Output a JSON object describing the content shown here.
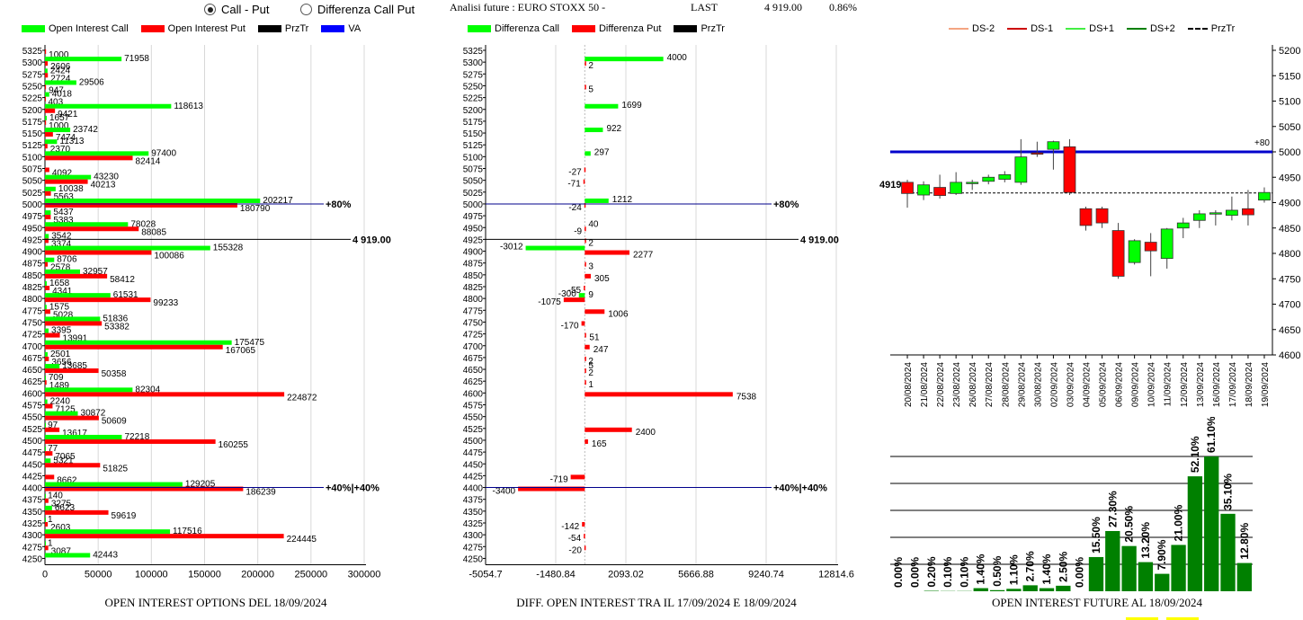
{
  "controls": {
    "radio_call_put": "Call - Put",
    "radio_diff": "Differenza Call Put",
    "selected": "call_put"
  },
  "header": {
    "analisi_label": "Analisi future : EURO STOXX 50 -",
    "last_label": "LAST",
    "last_value": "4 919.00",
    "change": "0.86%"
  },
  "colors": {
    "green": "#00ff00",
    "red": "#ff0000",
    "dark_green": "#008000",
    "blue": "#0000cc",
    "legend_orange": "#f4a582",
    "legend_darkred": "#cc0000"
  },
  "chart_data": [
    {
      "type": "bar",
      "orientation": "horizontal",
      "title": "OPEN INTEREST OPTIONS DEL 18/09/2024",
      "legend": [
        "Open Interest Call",
        "Open Interest Put",
        "PrzTr",
        "VA"
      ],
      "categories": [
        "5325",
        "5300",
        "5275",
        "5250",
        "5225",
        "5200",
        "5175",
        "5150",
        "5125",
        "5100",
        "5075",
        "5050",
        "5025",
        "5000",
        "4975",
        "4950",
        "4925",
        "4900",
        "4875",
        "4850",
        "4825",
        "4800",
        "4775",
        "4750",
        "4725",
        "4700",
        "4675",
        "4650",
        "4625",
        "4600",
        "4575",
        "4550",
        "4525",
        "4500",
        "4475",
        "4450",
        "4425",
        "4400",
        "4375",
        "4350",
        "4325",
        "4300",
        "4275",
        "4250"
      ],
      "series": [
        {
          "name": "Open Interest Call",
          "values": [
            0,
            71958,
            2424,
            29506,
            4018,
            118613,
            1657,
            23742,
            11313,
            97400,
            0,
            43230,
            10038,
            202217,
            5437,
            78028,
            3542,
            155328,
            8706,
            32957,
            1658,
            61531,
            1575,
            51836,
            3395,
            175475,
            2501,
            13685,
            709,
            82304,
            2240,
            30872,
            97,
            72218,
            77,
            5321,
            0,
            129205,
            140,
            6623,
            1,
            117516,
            1,
            42443
          ]
        },
        {
          "name": "Open Interest Put",
          "values": [
            1000,
            2606,
            2724,
            947,
            403,
            9421,
            1000,
            7474,
            2370,
            82414,
            4092,
            40213,
            5563,
            180790,
            5383,
            88085,
            3374,
            100086,
            2578,
            58412,
            4341,
            99233,
            5028,
            53382,
            13991,
            167065,
            3656,
            50358,
            1489,
            224872,
            7125,
            50609,
            13617,
            160255,
            7065,
            51825,
            8662,
            186239,
            3275,
            59619,
            2603,
            224445,
            3087,
            0
          ]
        }
      ],
      "xticks": [
        "0",
        "50000",
        "100000",
        "150000",
        "200000",
        "250000",
        "300000"
      ],
      "xlim": [
        0,
        300000
      ],
      "markers": [
        {
          "strike": "5000",
          "label": "80%"
        },
        {
          "strike": "4925",
          "label": "4 919.00"
        },
        {
          "strike": "4400",
          "label": "40%|+40%"
        }
      ]
    },
    {
      "type": "bar",
      "orientation": "horizontal",
      "title": "DIFF. OPEN INTEREST TRA IL 17/09/2024 E 18/09/2024",
      "legend": [
        "Differenza Call",
        "Differenza Put",
        "PrzTr"
      ],
      "categories": [
        "5325",
        "5300",
        "5275",
        "5250",
        "5225",
        "5200",
        "5175",
        "5150",
        "5125",
        "5100",
        "5075",
        "5050",
        "5025",
        "5000",
        "4975",
        "4950",
        "4925",
        "4900",
        "4875",
        "4850",
        "4825",
        "4800",
        "4775",
        "4750",
        "4725",
        "4700",
        "4675",
        "4650",
        "4625",
        "4600",
        "4575",
        "4550",
        "4525",
        "4500",
        "4475",
        "4450",
        "4425",
        "4400",
        "4375",
        "4350",
        "4325",
        "4300",
        "4275",
        "4250"
      ],
      "series": [
        {
          "name": "Differenza Call",
          "values": [
            null,
            4000,
            null,
            null,
            null,
            1699,
            null,
            922,
            null,
            297,
            null,
            null,
            null,
            1212,
            null,
            null,
            null,
            -3012,
            null,
            null,
            null,
            -300,
            null,
            null,
            null,
            null,
            null,
            null,
            null,
            null,
            null,
            null,
            null,
            null,
            null,
            null,
            null,
            null,
            null,
            null,
            null,
            null,
            null,
            null
          ]
        },
        {
          "name": "Differenza Put",
          "values": [
            null,
            2,
            null,
            5,
            null,
            null,
            null,
            null,
            null,
            null,
            -27,
            -71,
            null,
            -24,
            null,
            -9,
            2,
            2277,
            3,
            305,
            -55,
            -1075,
            1006,
            -170,
            51,
            247,
            2,
            2,
            1,
            7538,
            null,
            null,
            2400,
            165,
            null,
            null,
            -719,
            -3400,
            null,
            null,
            -142,
            -54,
            -20,
            null
          ]
        },
        {
          "name": "Differenza Put extra",
          "values": [
            null,
            null,
            null,
            null,
            null,
            null,
            null,
            null,
            null,
            null,
            null,
            null,
            null,
            null,
            null,
            40,
            null,
            null,
            null,
            null,
            null,
            9,
            null,
            null,
            null,
            null,
            null,
            5,
            null,
            null,
            null,
            null,
            null,
            null,
            null,
            null,
            null,
            null,
            null,
            null,
            null,
            null,
            null,
            null
          ]
        }
      ],
      "xticks": [
        "-5054.7",
        "-1480.84",
        "2093.02",
        "5666.88",
        "9240.74",
        "12814.6"
      ],
      "xlim": [
        -5054.7,
        12814.6
      ],
      "markers": [
        {
          "strike": "5000",
          "label": "80%"
        },
        {
          "strike": "4925",
          "label": "4 919.00"
        },
        {
          "strike": "4400",
          "label": "40%|+40%"
        }
      ]
    },
    {
      "type": "candlestick",
      "legend": [
        "DS-2",
        "DS-1",
        "DS+1",
        "DS+2",
        "PrzTr"
      ],
      "dates": [
        "20/08/2024",
        "21/08/2024",
        "22/08/2024",
        "23/08/2024",
        "26/08/2024",
        "27/08/2024",
        "28/08/2024",
        "29/08/2024",
        "30/08/2024",
        "02/09/2024",
        "03/09/2024",
        "04/09/2024",
        "05/09/2024",
        "06/09/2024",
        "09/09/2024",
        "10/09/2024",
        "11/09/2024",
        "12/09/2024",
        "13/09/2024",
        "16/09/2024",
        "17/09/2024",
        "18/09/2024",
        "19/09/2024"
      ],
      "ohlc": [
        [
          4940,
          4945,
          4890,
          4918
        ],
        [
          4915,
          4942,
          4905,
          4935
        ],
        [
          4930,
          4955,
          4908,
          4914
        ],
        [
          4918,
          4960,
          4915,
          4940
        ],
        [
          4938,
          4945,
          4925,
          4940
        ],
        [
          4942,
          4955,
          4936,
          4950
        ],
        [
          4946,
          4962,
          4940,
          4955
        ],
        [
          4940,
          5025,
          4935,
          4990
        ],
        [
          4998,
          5020,
          4990,
          4996
        ],
        [
          5005,
          5022,
          4965,
          5020
        ],
        [
          5010,
          5025,
          4915,
          4920
        ],
        [
          4888,
          4892,
          4845,
          4855
        ],
        [
          4888,
          4892,
          4850,
          4860
        ],
        [
          4845,
          4860,
          4750,
          4755
        ],
        [
          4782,
          4828,
          4778,
          4825
        ],
        [
          4822,
          4840,
          4755,
          4805
        ],
        [
          4790,
          4850,
          4770,
          4848
        ],
        [
          4850,
          4870,
          4830,
          4860
        ],
        [
          4865,
          4885,
          4850,
          4878
        ],
        [
          4878,
          4885,
          4855,
          4880
        ],
        [
          4875,
          4912,
          4865,
          4885
        ],
        [
          4888,
          4925,
          4855,
          4876
        ],
        [
          4905,
          4930,
          4900,
          4920
        ]
      ],
      "yticks": [
        "5200",
        "5150",
        "5100",
        "5050",
        "5000",
        "4950",
        "4900",
        "4850",
        "4800",
        "4750",
        "4700",
        "4650",
        "4600"
      ],
      "ylim": [
        4600,
        5200
      ],
      "level_blue": 5000,
      "level_blue_label": "+80",
      "last_value": 4919,
      "last_label": "4919"
    },
    {
      "type": "bar",
      "title": "OPEN INTEREST FUTURE AL 18/09/2024",
      "labels": [
        "0.00%",
        "0.00%",
        "0.20%",
        "0.10%",
        "0.10%",
        "1.40%",
        "0.50%",
        "1.10%",
        "2.70%",
        "1.40%",
        "2.50%",
        "0.00%",
        "15.50%",
        "27.30%",
        "20.50%",
        "13.20%",
        "7.90%",
        "21.00%",
        "52.10%",
        "61.10%",
        "35.10%",
        "12.80%"
      ],
      "values": [
        0,
        0,
        0.2,
        0.1,
        0.1,
        1.4,
        0.5,
        1.1,
        2.7,
        1.4,
        2.5,
        0,
        15.5,
        27.3,
        20.5,
        13.2,
        7.9,
        21.0,
        52.1,
        61.1,
        35.1,
        12.8
      ]
    }
  ]
}
